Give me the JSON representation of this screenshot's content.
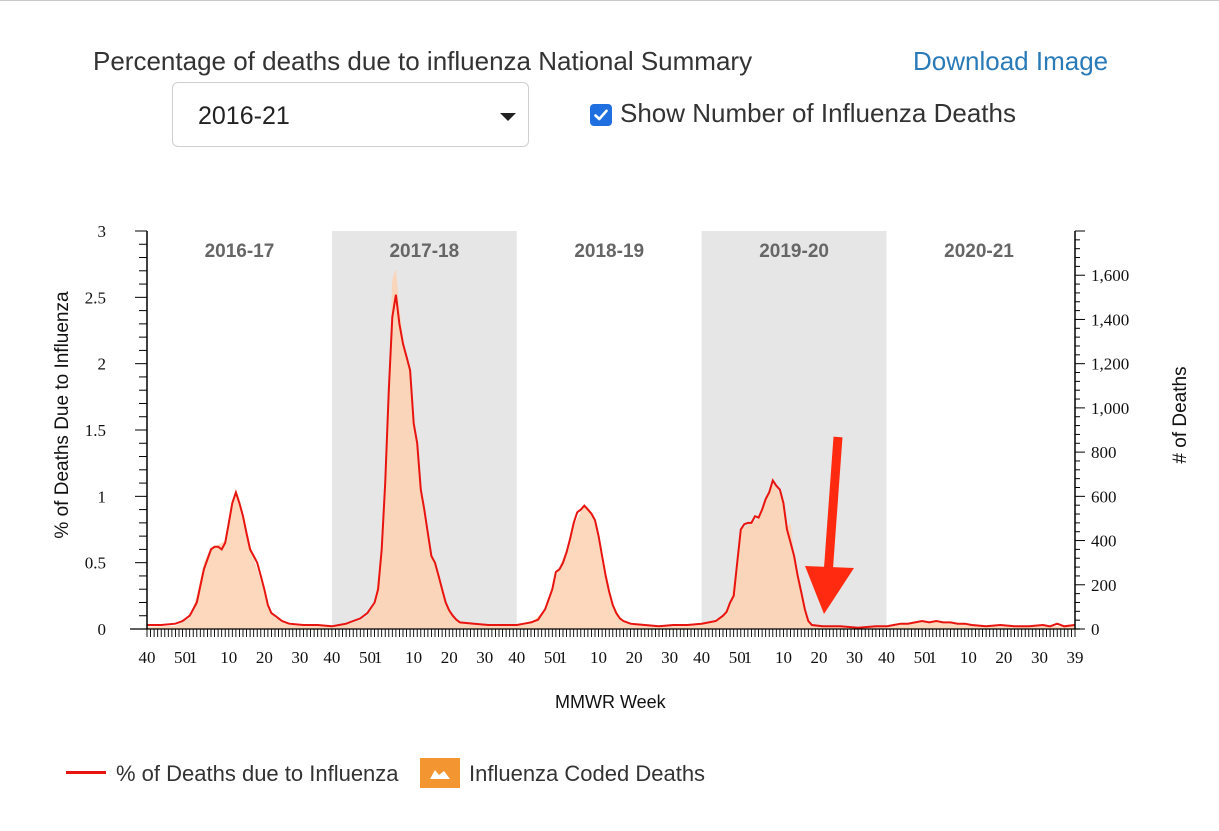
{
  "header": {
    "title": "Percentage of deaths due to influenza National Summary",
    "download_label": "Download Image",
    "season_select": {
      "selected": "2016-21"
    },
    "checkbox": {
      "label": "Show Number of Influenza Deaths",
      "checked": true
    }
  },
  "colors": {
    "line": "#e8140f",
    "area": "#fdd1b1",
    "area_shaded": "#eabca0",
    "band": "#e6e6e6",
    "arrow": "#ff2a10",
    "legend_swatch": "#f39530",
    "link": "#2a7ab8",
    "checkbox": "#1f6fe0"
  },
  "legend": {
    "line_label": "% of Deaths due to Influenza",
    "area_label": "Influenza Coded Deaths"
  },
  "chart_data": {
    "type": "line",
    "xlabel": "MMWR Week",
    "ylabel": "% of Deaths Due to Influenza",
    "y2label": "# of Deaths",
    "ylim": [
      0,
      3
    ],
    "y2lim": [
      0,
      1800
    ],
    "yticks": [
      "0",
      "0.5",
      "1",
      "1.5",
      "2",
      "2.5",
      "3"
    ],
    "y2ticks": [
      "0",
      "200",
      "400",
      "600",
      "800",
      "1,000",
      "1,200",
      "1,400",
      "1,600"
    ],
    "xticks": [
      "40",
      "50",
      "1",
      "10",
      "20",
      "30",
      "40",
      "50",
      "1",
      "10",
      "20",
      "30",
      "40",
      "50",
      "1",
      "10",
      "20",
      "30",
      "40",
      "50",
      "1",
      "10",
      "20",
      "30",
      "40",
      "50",
      "1",
      "10",
      "20",
      "30",
      "39"
    ],
    "seasons": [
      {
        "label": "2016-17",
        "shaded": false
      },
      {
        "label": "2017-18",
        "shaded": true
      },
      {
        "label": "2018-19",
        "shaded": false
      },
      {
        "label": "2019-20",
        "shaded": true
      },
      {
        "label": "2020-21",
        "shaded": false
      }
    ],
    "total_weeks": 261,
    "series": [
      {
        "name": "% of Deaths due to Influenza",
        "axis": "left",
        "points": [
          [
            0,
            0.03
          ],
          [
            4,
            0.03
          ],
          [
            8,
            0.04
          ],
          [
            10,
            0.06
          ],
          [
            12,
            0.1
          ],
          [
            14,
            0.2
          ],
          [
            16,
            0.45
          ],
          [
            18,
            0.6
          ],
          [
            19,
            0.62
          ],
          [
            20,
            0.62
          ],
          [
            21,
            0.6
          ],
          [
            22,
            0.65
          ],
          [
            23,
            0.8
          ],
          [
            24,
            0.95
          ],
          [
            25,
            1.03
          ],
          [
            26,
            0.95
          ],
          [
            27,
            0.85
          ],
          [
            28,
            0.72
          ],
          [
            29,
            0.6
          ],
          [
            30,
            0.55
          ],
          [
            31,
            0.5
          ],
          [
            32,
            0.4
          ],
          [
            33,
            0.3
          ],
          [
            34,
            0.18
          ],
          [
            35,
            0.12
          ],
          [
            36,
            0.1
          ],
          [
            37,
            0.08
          ],
          [
            38,
            0.06
          ],
          [
            40,
            0.04
          ],
          [
            44,
            0.03
          ],
          [
            48,
            0.03
          ],
          [
            52,
            0.02
          ],
          [
            54,
            0.03
          ],
          [
            56,
            0.04
          ],
          [
            58,
            0.06
          ],
          [
            60,
            0.08
          ],
          [
            62,
            0.12
          ],
          [
            64,
            0.2
          ],
          [
            65,
            0.3
          ],
          [
            66,
            0.6
          ],
          [
            67,
            1.1
          ],
          [
            68,
            1.8
          ],
          [
            69,
            2.35
          ],
          [
            70,
            2.52
          ],
          [
            71,
            2.3
          ],
          [
            72,
            2.15
          ],
          [
            73,
            2.05
          ],
          [
            74,
            1.95
          ],
          [
            75,
            1.55
          ],
          [
            76,
            1.4
          ],
          [
            77,
            1.05
          ],
          [
            78,
            0.9
          ],
          [
            79,
            0.72
          ],
          [
            80,
            0.55
          ],
          [
            81,
            0.5
          ],
          [
            82,
            0.4
          ],
          [
            83,
            0.3
          ],
          [
            84,
            0.2
          ],
          [
            85,
            0.14
          ],
          [
            86,
            0.1
          ],
          [
            87,
            0.07
          ],
          [
            88,
            0.05
          ],
          [
            92,
            0.04
          ],
          [
            96,
            0.03
          ],
          [
            100,
            0.03
          ],
          [
            104,
            0.03
          ],
          [
            106,
            0.04
          ],
          [
            108,
            0.05
          ],
          [
            110,
            0.07
          ],
          [
            112,
            0.15
          ],
          [
            114,
            0.3
          ],
          [
            115,
            0.43
          ],
          [
            116,
            0.45
          ],
          [
            117,
            0.5
          ],
          [
            118,
            0.58
          ],
          [
            119,
            0.68
          ],
          [
            120,
            0.8
          ],
          [
            121,
            0.88
          ],
          [
            122,
            0.9
          ],
          [
            123,
            0.93
          ],
          [
            124,
            0.9
          ],
          [
            125,
            0.87
          ],
          [
            126,
            0.82
          ],
          [
            127,
            0.7
          ],
          [
            128,
            0.55
          ],
          [
            129,
            0.4
          ],
          [
            130,
            0.28
          ],
          [
            131,
            0.18
          ],
          [
            132,
            0.12
          ],
          [
            133,
            0.08
          ],
          [
            134,
            0.06
          ],
          [
            136,
            0.04
          ],
          [
            140,
            0.03
          ],
          [
            144,
            0.02
          ],
          [
            148,
            0.03
          ],
          [
            152,
            0.03
          ],
          [
            156,
            0.04
          ],
          [
            158,
            0.05
          ],
          [
            160,
            0.06
          ],
          [
            162,
            0.1
          ],
          [
            163,
            0.13
          ],
          [
            164,
            0.2
          ],
          [
            165,
            0.25
          ],
          [
            166,
            0.5
          ],
          [
            167,
            0.75
          ],
          [
            168,
            0.79
          ],
          [
            169,
            0.8
          ],
          [
            170,
            0.8
          ],
          [
            171,
            0.85
          ],
          [
            172,
            0.84
          ],
          [
            173,
            0.9
          ],
          [
            174,
            0.98
          ],
          [
            175,
            1.03
          ],
          [
            176,
            1.12
          ],
          [
            177,
            1.08
          ],
          [
            178,
            1.05
          ],
          [
            179,
            0.95
          ],
          [
            180,
            0.75
          ],
          [
            181,
            0.65
          ],
          [
            182,
            0.55
          ],
          [
            183,
            0.4
          ],
          [
            184,
            0.28
          ],
          [
            185,
            0.15
          ],
          [
            186,
            0.06
          ],
          [
            187,
            0.03
          ],
          [
            190,
            0.02
          ],
          [
            195,
            0.02
          ],
          [
            200,
            0.01
          ],
          [
            205,
            0.02
          ],
          [
            208,
            0.02
          ],
          [
            210,
            0.03
          ],
          [
            212,
            0.04
          ],
          [
            214,
            0.04
          ],
          [
            216,
            0.05
          ],
          [
            218,
            0.06
          ],
          [
            220,
            0.05
          ],
          [
            222,
            0.06
          ],
          [
            224,
            0.05
          ],
          [
            226,
            0.05
          ],
          [
            228,
            0.04
          ],
          [
            230,
            0.04
          ],
          [
            232,
            0.03
          ],
          [
            236,
            0.02
          ],
          [
            240,
            0.03
          ],
          [
            244,
            0.02
          ],
          [
            248,
            0.02
          ],
          [
            252,
            0.03
          ],
          [
            254,
            0.02
          ],
          [
            256,
            0.04
          ],
          [
            258,
            0.02
          ],
          [
            261,
            0.03
          ]
        ]
      },
      {
        "name": "Influenza Coded Deaths",
        "axis": "right",
        "points": [
          [
            0,
            10
          ],
          [
            8,
            15
          ],
          [
            12,
            50
          ],
          [
            14,
            150
          ],
          [
            16,
            300
          ],
          [
            18,
            370
          ],
          [
            20,
            380
          ],
          [
            22,
            400
          ],
          [
            24,
            560
          ],
          [
            25,
            620
          ],
          [
            26,
            580
          ],
          [
            28,
            440
          ],
          [
            30,
            320
          ],
          [
            32,
            220
          ],
          [
            34,
            100
          ],
          [
            36,
            50
          ],
          [
            40,
            20
          ],
          [
            52,
            10
          ],
          [
            56,
            20
          ],
          [
            60,
            40
          ],
          [
            62,
            60
          ],
          [
            64,
            110
          ],
          [
            66,
            380
          ],
          [
            67,
            700
          ],
          [
            68,
            1100
          ],
          [
            69,
            1580
          ],
          [
            70,
            1630
          ],
          [
            71,
            1450
          ],
          [
            72,
            1320
          ],
          [
            73,
            1220
          ],
          [
            74,
            1180
          ],
          [
            75,
            950
          ],
          [
            76,
            850
          ],
          [
            77,
            620
          ],
          [
            78,
            530
          ],
          [
            80,
            330
          ],
          [
            82,
            240
          ],
          [
            84,
            120
          ],
          [
            86,
            55
          ],
          [
            88,
            30
          ],
          [
            92,
            20
          ],
          [
            104,
            15
          ],
          [
            108,
            25
          ],
          [
            112,
            90
          ],
          [
            114,
            190
          ],
          [
            116,
            280
          ],
          [
            118,
            360
          ],
          [
            120,
            470
          ],
          [
            122,
            530
          ],
          [
            123,
            560
          ],
          [
            124,
            550
          ],
          [
            126,
            490
          ],
          [
            128,
            330
          ],
          [
            130,
            170
          ],
          [
            132,
            75
          ],
          [
            134,
            35
          ],
          [
            140,
            15
          ],
          [
            156,
            20
          ],
          [
            160,
            35
          ],
          [
            162,
            60
          ],
          [
            164,
            120
          ],
          [
            166,
            300
          ],
          [
            167,
            450
          ],
          [
            168,
            460
          ],
          [
            170,
            480
          ],
          [
            172,
            500
          ],
          [
            174,
            580
          ],
          [
            175,
            610
          ],
          [
            176,
            660
          ],
          [
            177,
            640
          ],
          [
            178,
            610
          ],
          [
            179,
            560
          ],
          [
            180,
            460
          ],
          [
            181,
            480
          ],
          [
            182,
            330
          ],
          [
            183,
            240
          ],
          [
            185,
            80
          ],
          [
            187,
            20
          ],
          [
            195,
            10
          ],
          [
            208,
            10
          ],
          [
            212,
            20
          ],
          [
            216,
            30
          ],
          [
            220,
            35
          ],
          [
            224,
            30
          ],
          [
            228,
            25
          ],
          [
            232,
            15
          ],
          [
            240,
            12
          ],
          [
            250,
            12
          ],
          [
            261,
            12
          ]
        ]
      }
    ],
    "annotations": [
      {
        "type": "arrow",
        "text": ""
      }
    ]
  }
}
